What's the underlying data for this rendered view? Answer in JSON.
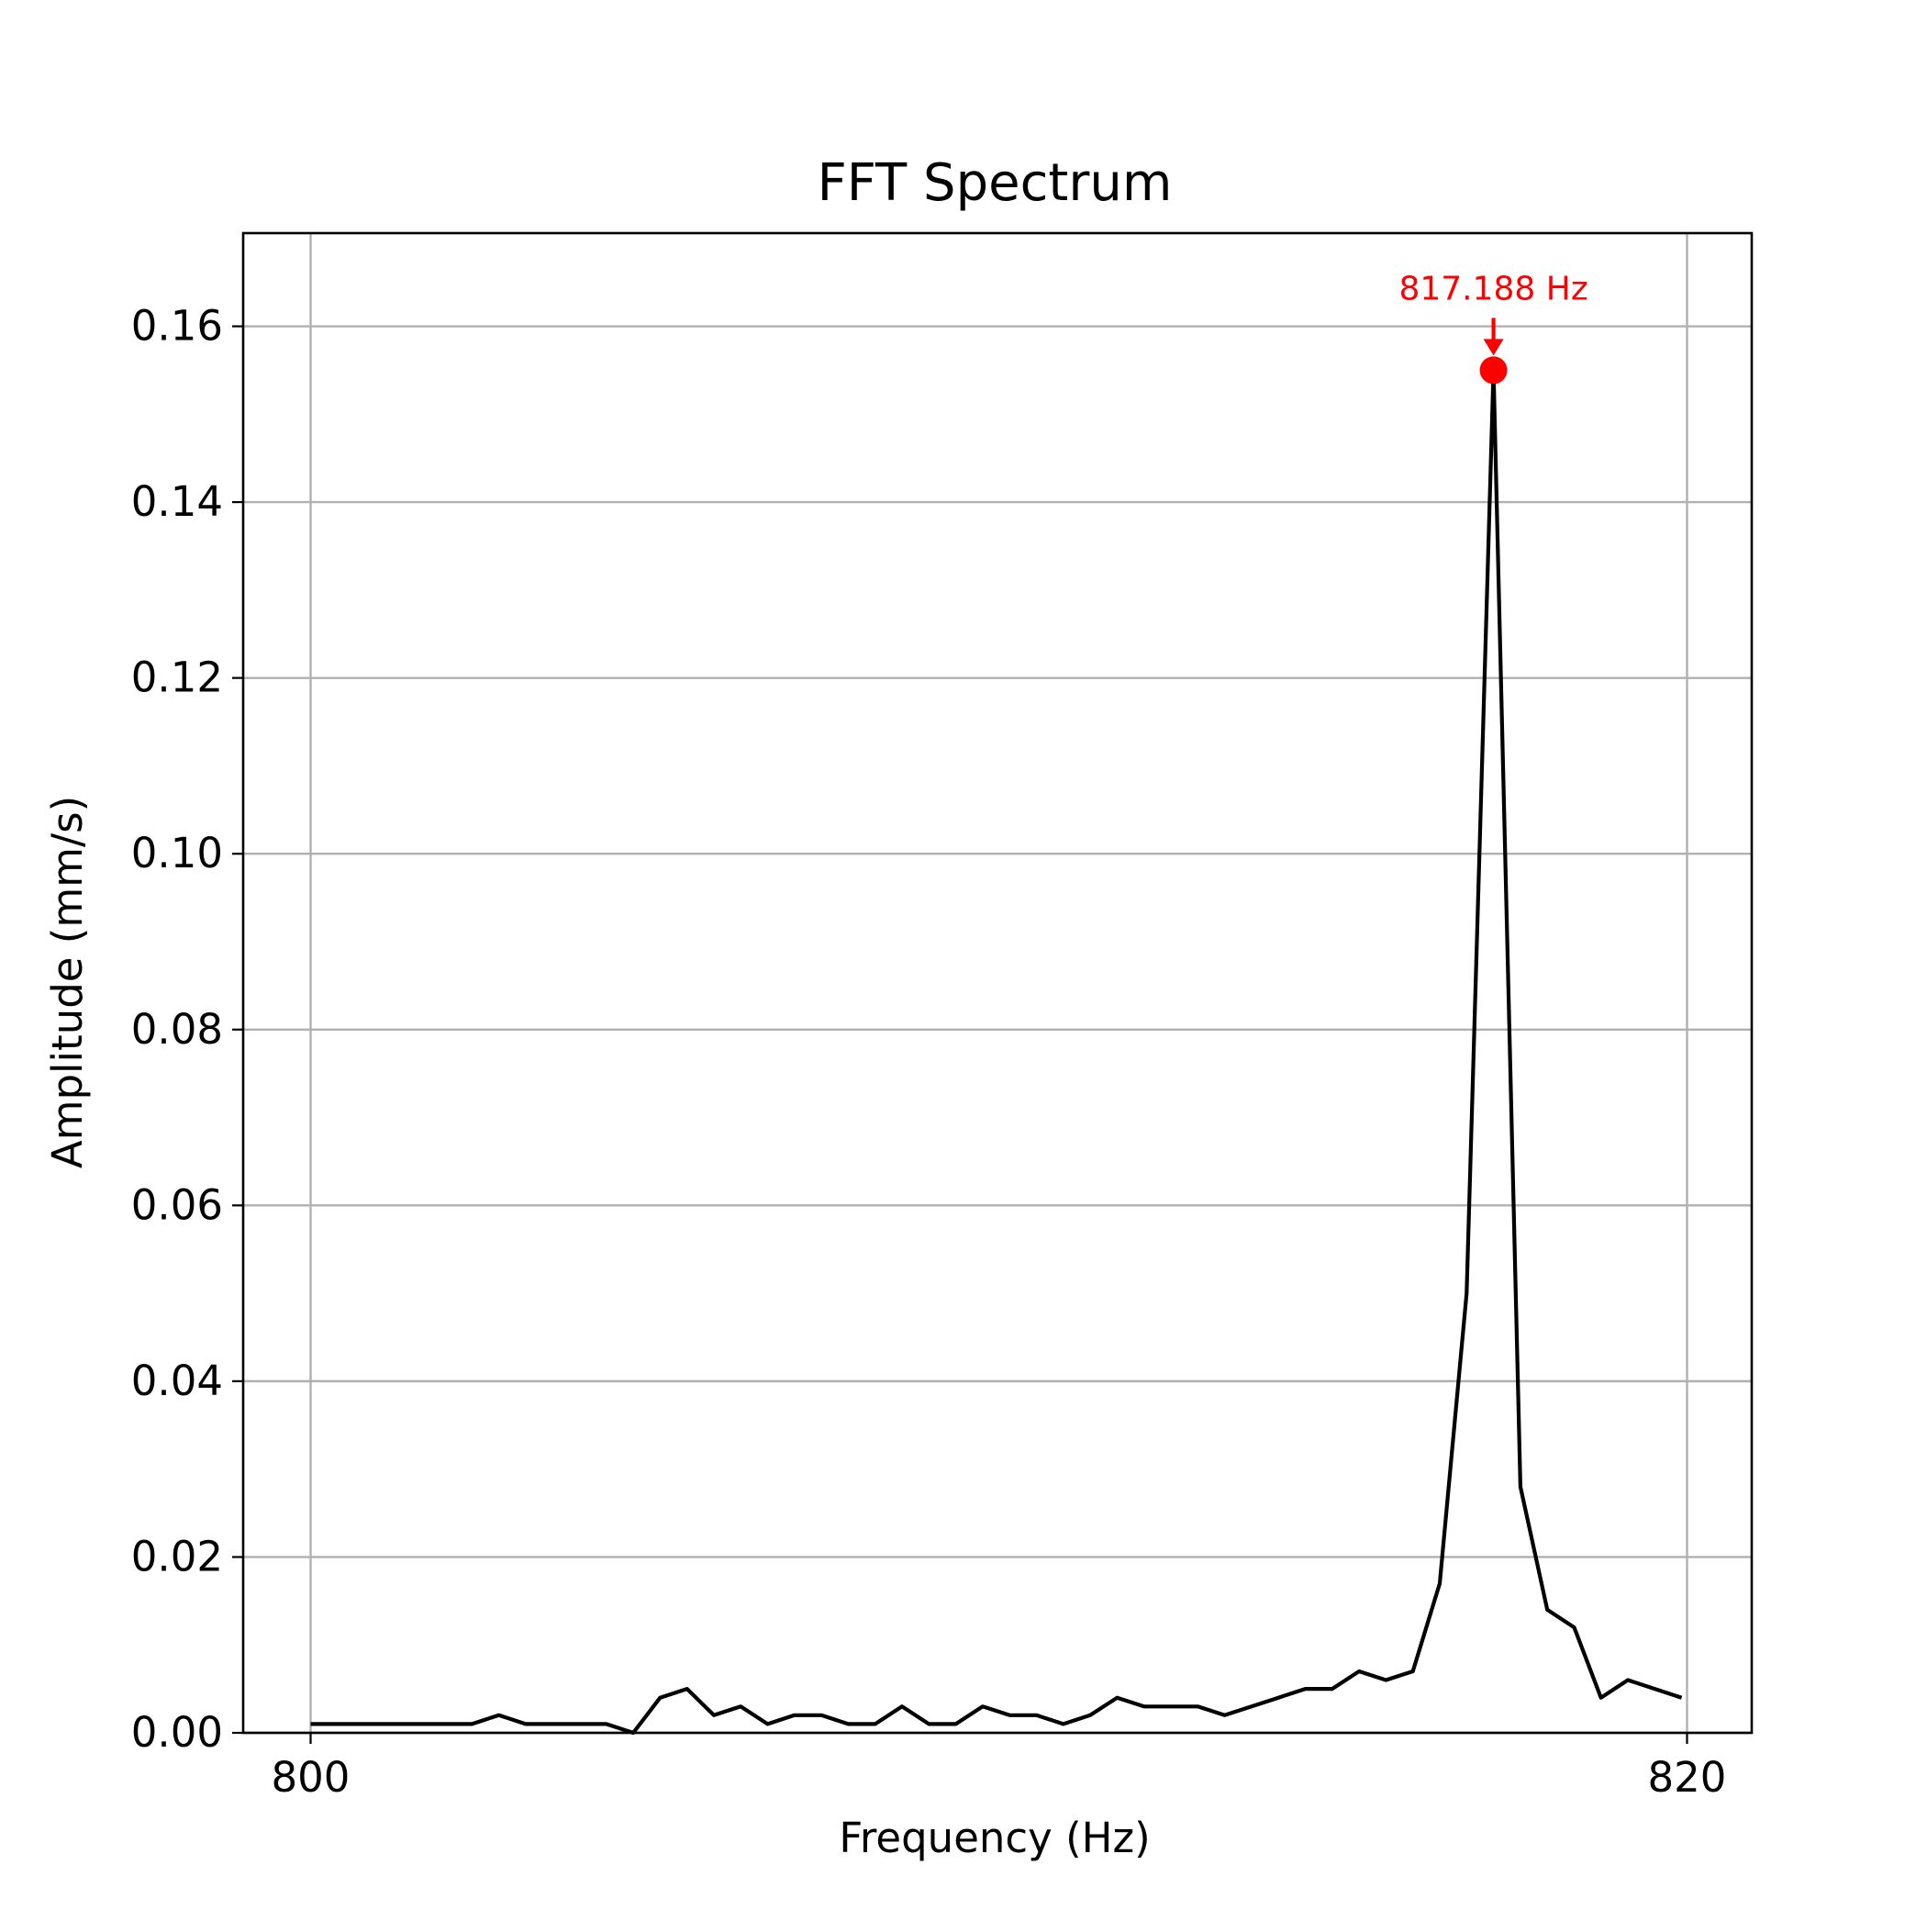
{
  "chart_data": {
    "type": "line",
    "title": "FFT Spectrum",
    "xlabel": "Frequency (Hz)",
    "ylabel": "Amplitude (mm/s)",
    "xlim": [
      799.02,
      820.94
    ],
    "ylim": [
      0,
      0.1706
    ],
    "x_ticks": [
      800,
      820
    ],
    "x_tick_labels": [
      "800",
      "820"
    ],
    "y_ticks": [
      0,
      0.02,
      0.04,
      0.06,
      0.08,
      0.1,
      0.12,
      0.14,
      0.16
    ],
    "y_tick_labels": [
      "0.00",
      "0.02",
      "0.04",
      "0.06",
      "0.08",
      "0.10",
      "0.12",
      "0.14",
      "0.16"
    ],
    "grid": true,
    "colors": {
      "line": "#000000",
      "annotation": "#ff0000",
      "grid": "#b0b0b0",
      "axes": "#000000"
    },
    "series": [
      {
        "x_start": 800,
        "x_step": 0.390625,
        "values": [
          0.001,
          0.001,
          0.001,
          0.001,
          0.001,
          0.001,
          0.001,
          0.002,
          0.001,
          0.001,
          0.001,
          0.001,
          0.0,
          0.004,
          0.005,
          0.002,
          0.003,
          0.001,
          0.002,
          0.002,
          0.001,
          0.001,
          0.003,
          0.001,
          0.001,
          0.003,
          0.002,
          0.002,
          0.001,
          0.002,
          0.004,
          0.003,
          0.003,
          0.003,
          0.002,
          0.003,
          0.004,
          0.005,
          0.005,
          0.007,
          0.006,
          0.007,
          0.017,
          0.05,
          0.155,
          0.028,
          0.014,
          0.012,
          0.004,
          0.006,
          0.005,
          0.004
        ]
      }
    ],
    "peak": {
      "x": 817.188,
      "y": 0.155,
      "label": "817.188 Hz"
    }
  }
}
